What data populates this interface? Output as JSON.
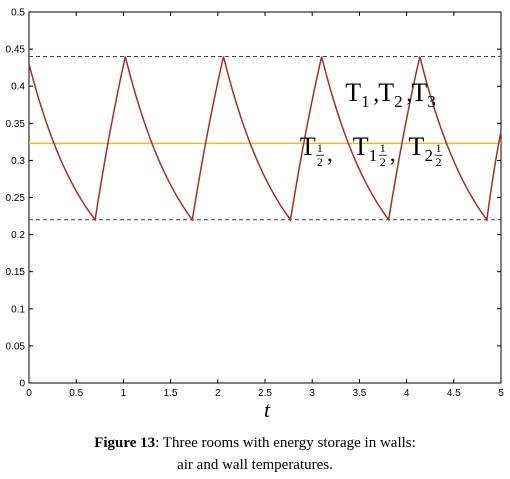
{
  "chart_data": {
    "type": "line",
    "xlabel": "t",
    "ylabel": "",
    "xlim": [
      0,
      5
    ],
    "ylim": [
      0,
      0.5
    ],
    "xticks": [
      "0",
      "0.5",
      "1",
      "1.5",
      "2",
      "2.5",
      "3",
      "3.5",
      "4",
      "4.5",
      "5"
    ],
    "xtick_values": [
      0,
      0.5,
      1,
      1.5,
      2,
      2.5,
      3,
      3.5,
      4,
      4.5,
      5
    ],
    "yticks": [
      "0",
      "0.05",
      "0.1",
      "0.15",
      "0.2",
      "0.25",
      "0.3",
      "0.35",
      "0.4",
      "0.45",
      "0.5"
    ],
    "ytick_values": [
      0,
      0.05,
      0.1,
      0.15,
      0.2,
      0.25,
      0.3,
      0.35,
      0.4,
      0.45,
      0.5
    ],
    "grid": false,
    "reference_lines": [
      {
        "y": 0.44,
        "style": "dashed",
        "color": "#33476e"
      },
      {
        "y": 0.22,
        "style": "dashed",
        "color": "#33476e"
      }
    ],
    "series": [
      {
        "color": "#a0302c",
        "x": [
          0,
          0.7,
          1.02,
          1.73,
          2.06,
          2.77,
          3.1,
          3.81,
          4.14,
          4.85,
          5
        ],
        "y": [
          0.43,
          0.22,
          0.44,
          0.22,
          0.44,
          0.22,
          0.44,
          0.22,
          0.44,
          0.22,
          0.34
        ]
      },
      {
        "color": "#e3c21b",
        "x": [
          0,
          5
        ],
        "y": [
          0.323,
          0.323
        ]
      }
    ],
    "annotations": {
      "a1": {
        "base": "T",
        "sub": "1",
        "x": 3.35,
        "y": 0.38
      },
      "a2": {
        "base": "T",
        "sub": "2",
        "x": 3.7,
        "y": 0.38
      },
      "a3": {
        "base": "T",
        "sub": "3",
        "x": 4.05,
        "y": 0.38
      },
      "sep": ",",
      "b1": {
        "base": "T",
        "sub_num": "1",
        "sub_den": "2",
        "x": 2.87,
        "y": 0.307
      },
      "b2": {
        "base": "T",
        "sub_lead": "1",
        "sub_num": "1",
        "sub_den": "2",
        "x": 3.43,
        "y": 0.307
      },
      "b3": {
        "base": "T",
        "sub_lead": "2",
        "sub_num": "1",
        "sub_den": "2",
        "x": 4.02,
        "y": 0.307
      }
    }
  },
  "caption": {
    "label": "Figure 13",
    "line1": ": Three rooms with energy storage in walls:",
    "line2": "air and wall temperatures."
  }
}
